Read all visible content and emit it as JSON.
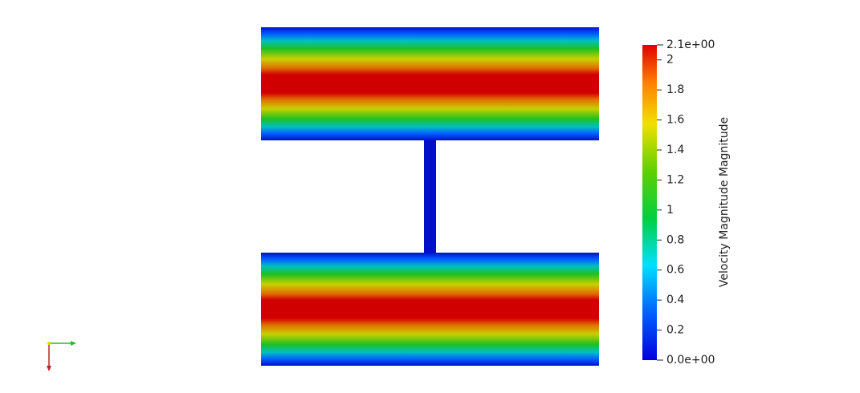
{
  "colorbar": {
    "title": "Velocity Magnitude Magnitude",
    "range": [
      {
        "value": 0,
        "label": "0.0e+00"
      },
      {
        "value": 2.1,
        "label": "2.1e+00"
      }
    ],
    "ticks": [
      0.2,
      0.4,
      0.6,
      0.8,
      1,
      1.2,
      1.4,
      1.6,
      1.8,
      2
    ]
  }
}
